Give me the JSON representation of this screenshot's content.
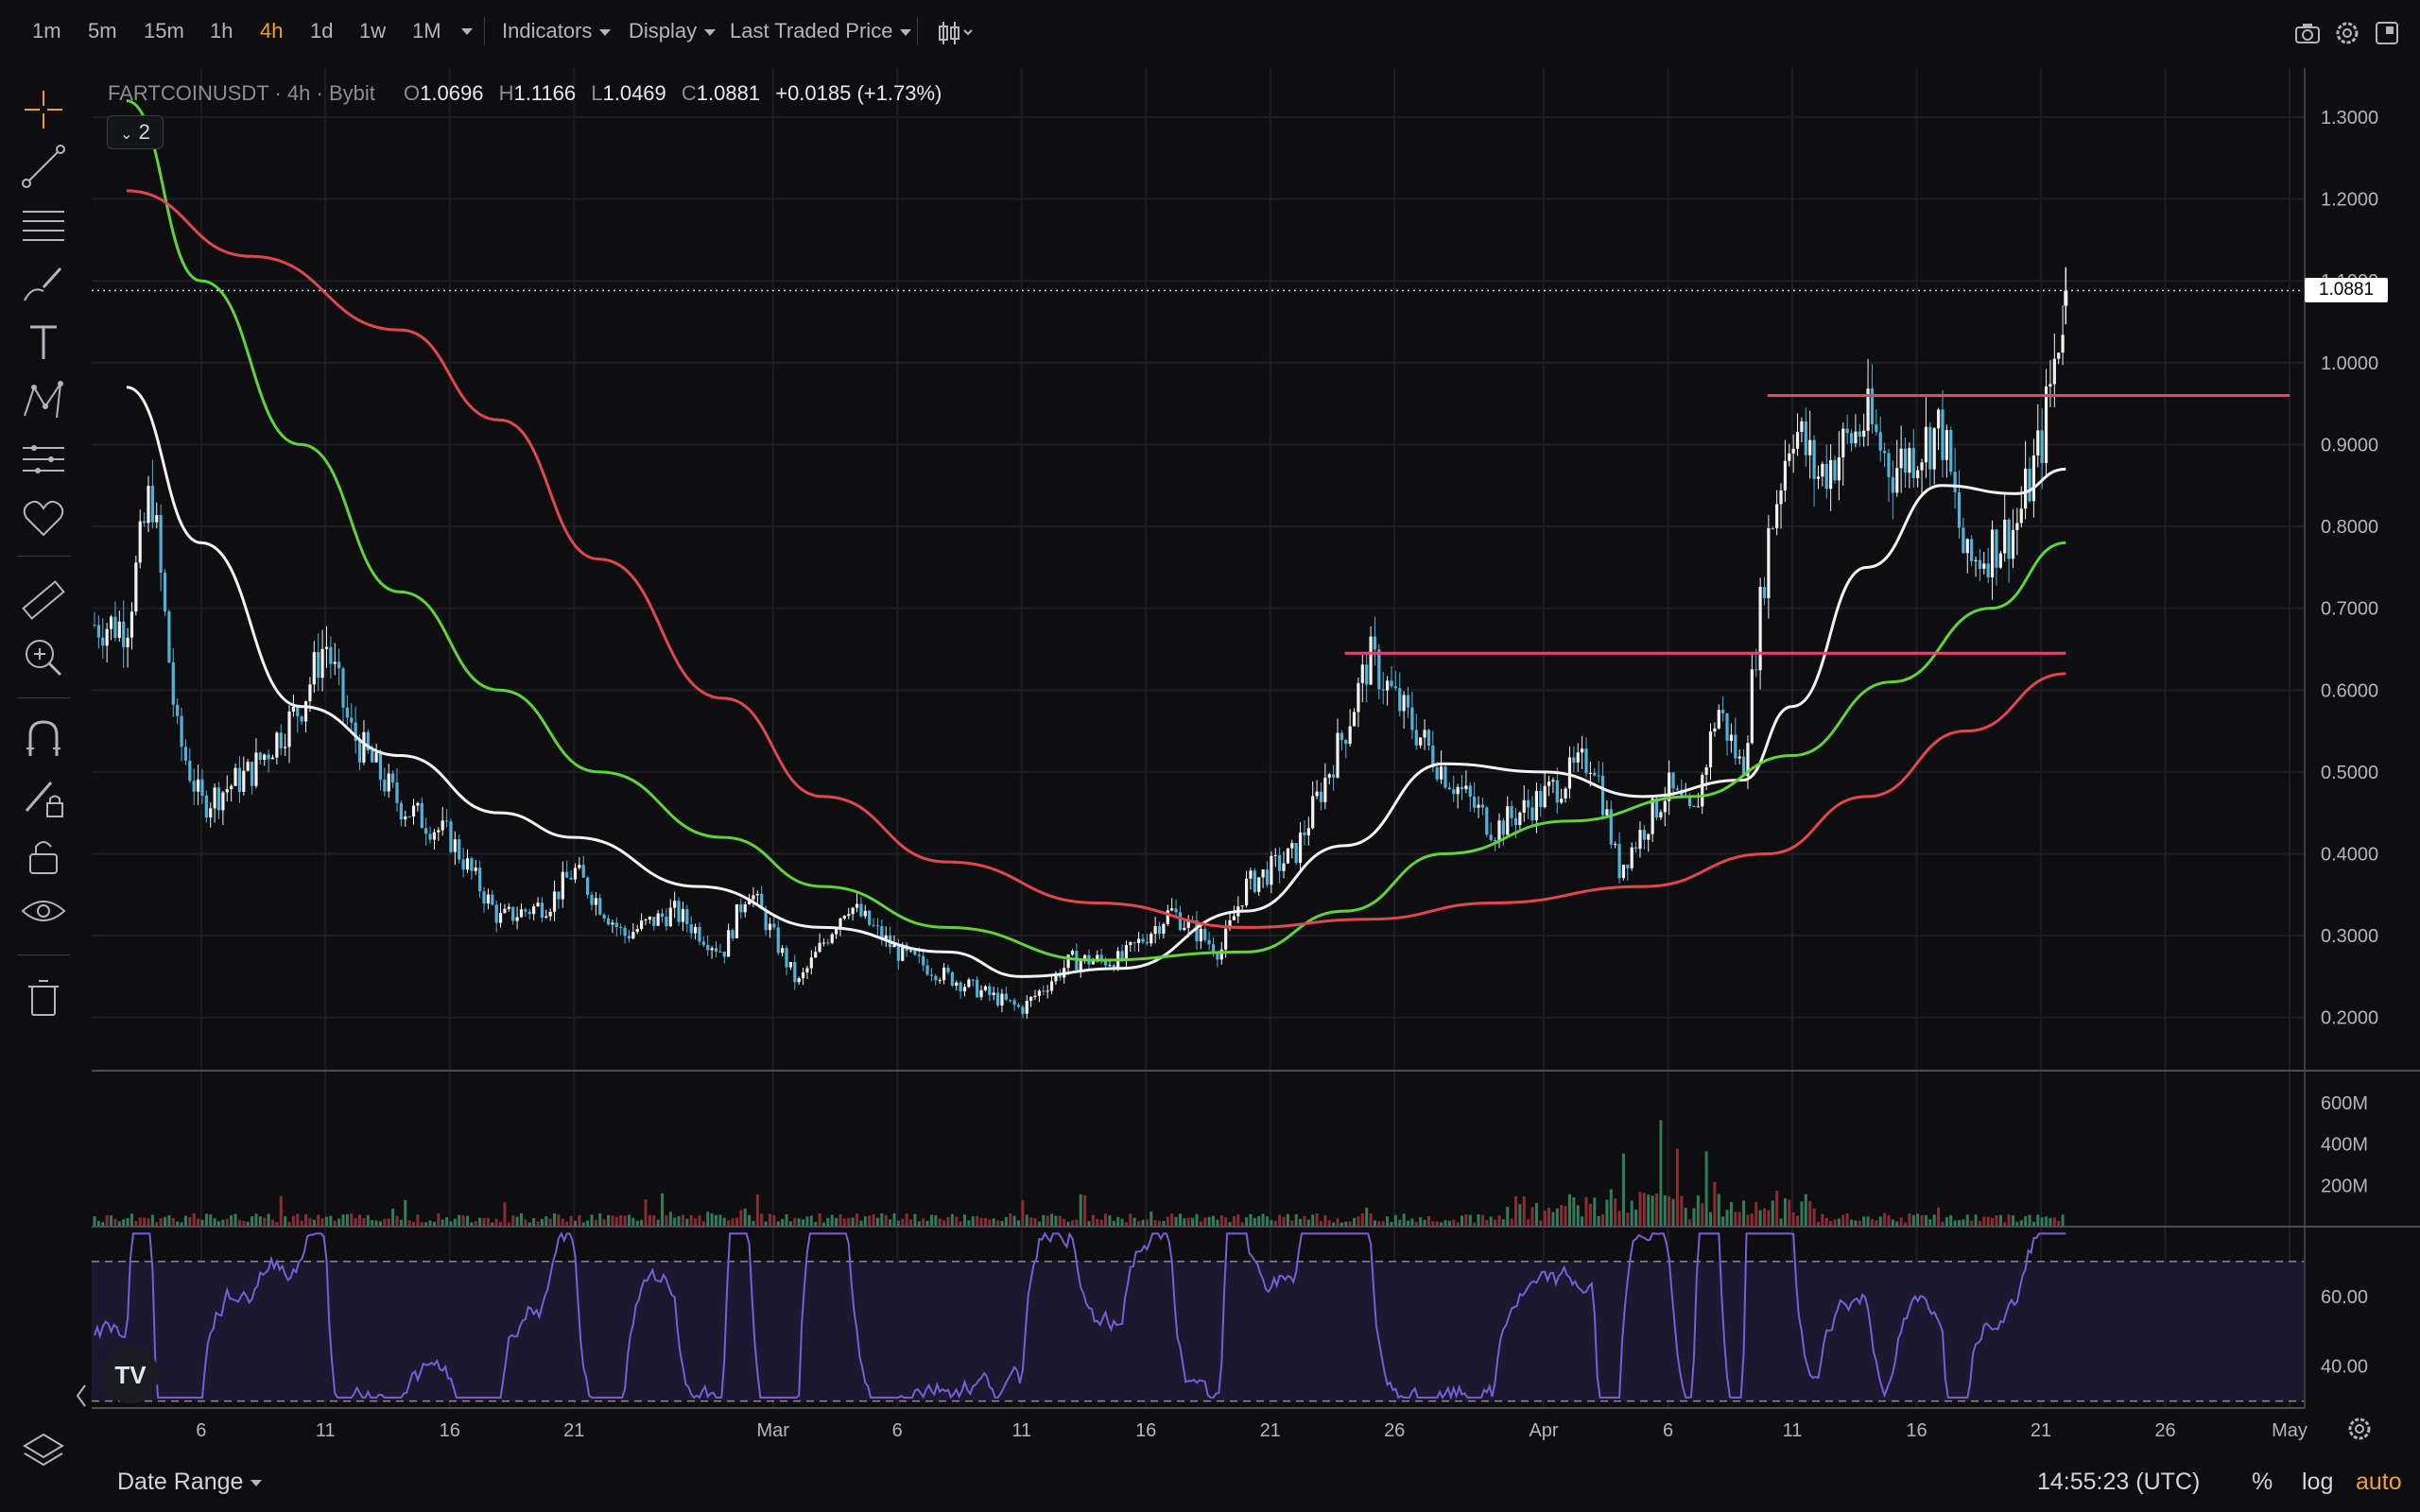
{
  "toolbar": {
    "timeframes": [
      "1m",
      "5m",
      "15m",
      "1h",
      "4h",
      "1d",
      "1w",
      "1M"
    ],
    "active_timeframe": "4h",
    "indicators_label": "Indicators",
    "display_label": "Display",
    "price_source_label": "Last Traded Price"
  },
  "legend": {
    "symbol": "FARTCOINUSDT",
    "interval": "4h",
    "exchange": "Bybit",
    "open_key": "O",
    "open": "1.0696",
    "high_key": "H",
    "high": "1.1166",
    "low_key": "L",
    "low": "1.0469",
    "close_key": "C",
    "close": "1.0881",
    "change": "+0.0185 (+1.73%)",
    "collapse_count": "2"
  },
  "current_price_label": "1.0881",
  "bottom": {
    "date_range_label": "Date Range",
    "clock": "14:55:23 (UTC)",
    "percent_label": "%",
    "log_label": "log",
    "auto_label": "auto",
    "logo_text": "TV"
  },
  "colors": {
    "background": "#0e0e10",
    "candle": "#4fb3d9",
    "ma_white": "#f2f2f2",
    "ma_green": "#5fd33a",
    "ma_red": "#e0474c",
    "hline": "#e0476e",
    "rsi_line": "#7a5cd6",
    "rsi_band": "#1b1830",
    "accent": "#f0a030"
  },
  "chart_data": [
    {
      "type": "candlestick",
      "title": "",
      "x_tick_labels": [
        "6",
        "11",
        "16",
        "21",
        "Mar",
        "6",
        "11",
        "16",
        "21",
        "26",
        "Apr",
        "6",
        "11",
        "16",
        "21",
        "26",
        "May"
      ],
      "y_tick_labels": [
        "0.2000",
        "0.3000",
        "0.4000",
        "0.5000",
        "0.6000",
        "0.7000",
        "0.8000",
        "0.9000",
        "1.0000",
        "1.1000",
        "1.2000",
        "1.3000"
      ],
      "ylim": [
        0.135,
        1.36
      ],
      "grid": true,
      "price_path": [
        [
          "Feb 3",
          0.68
        ],
        [
          "Feb 4",
          0.85
        ],
        [
          "Feb 5",
          0.55
        ],
        [
          "Feb 6",
          0.46
        ],
        [
          "Feb 8",
          0.5
        ],
        [
          "Feb 10",
          0.58
        ],
        [
          "Feb 11",
          0.66
        ],
        [
          "Feb 12",
          0.55
        ],
        [
          "Feb 14",
          0.46
        ],
        [
          "Feb 16",
          0.42
        ],
        [
          "Feb 18",
          0.32
        ],
        [
          "Feb 20",
          0.34
        ],
        [
          "Feb 21",
          0.38
        ],
        [
          "Feb 23",
          0.3
        ],
        [
          "Feb 25",
          0.33
        ],
        [
          "Feb 27",
          0.28
        ],
        [
          "Feb 28",
          0.36
        ],
        [
          "Mar 2",
          0.24
        ],
        [
          "Mar 4",
          0.34
        ],
        [
          "Mar 6",
          0.28
        ],
        [
          "Mar 8",
          0.25
        ],
        [
          "Mar 11",
          0.21
        ],
        [
          "Mar 13",
          0.27
        ],
        [
          "Mar 15",
          0.27
        ],
        [
          "Mar 17",
          0.33
        ],
        [
          "Mar 19",
          0.28
        ],
        [
          "Mar 20",
          0.36
        ],
        [
          "Mar 22",
          0.4
        ],
        [
          "Mar 24",
          0.55
        ],
        [
          "Mar 25",
          0.64
        ],
        [
          "Mar 26",
          0.59
        ],
        [
          "Mar 28",
          0.5
        ],
        [
          "Mar 30",
          0.43
        ],
        [
          "Apr 1",
          0.47
        ],
        [
          "Apr 3",
          0.52
        ],
        [
          "Apr 4",
          0.38
        ],
        [
          "Apr 6",
          0.48
        ],
        [
          "Apr 7",
          0.44
        ],
        [
          "Apr 8",
          0.58
        ],
        [
          "Apr 9",
          0.5
        ],
        [
          "Apr 10",
          0.78
        ],
        [
          "Apr 11",
          0.93
        ],
        [
          "Apr 12",
          0.86
        ],
        [
          "Apr 14",
          0.93
        ],
        [
          "Apr 15",
          0.87
        ],
        [
          "Apr 17",
          0.92
        ],
        [
          "Apr 18",
          0.75
        ],
        [
          "Apr 20",
          0.8
        ],
        [
          "Apr 21",
          0.9
        ],
        [
          "Apr 22",
          1.0881
        ]
      ],
      "series": [
        {
          "name": "",
          "color": "#f2f2f2",
          "points": [
            [
              "Feb 3",
              0.97
            ],
            [
              "Feb 6",
              0.78
            ],
            [
              "Feb 10",
              0.58
            ],
            [
              "Feb 14",
              0.52
            ],
            [
              "Feb 18",
              0.45
            ],
            [
              "Feb 21",
              0.42
            ],
            [
              "Feb 26",
              0.36
            ],
            [
              "Mar 3",
              0.31
            ],
            [
              "Mar 8",
              0.28
            ],
            [
              "Mar 11",
              0.25
            ],
            [
              "Mar 15",
              0.26
            ],
            [
              "Mar 20",
              0.33
            ],
            [
              "Mar 24",
              0.41
            ],
            [
              "Mar 28",
              0.51
            ],
            [
              "Apr 1",
              0.5
            ],
            [
              "Apr 5",
              0.47
            ],
            [
              "Apr 9",
              0.49
            ],
            [
              "Apr 11",
              0.58
            ],
            [
              "Apr 14",
              0.75
            ],
            [
              "Apr 17",
              0.85
            ],
            [
              "Apr 20",
              0.84
            ],
            [
              "Apr 22",
              0.87
            ]
          ]
        },
        {
          "name": "",
          "color": "#5fd33a",
          "points": [
            [
              "Feb 3",
              1.32
            ],
            [
              "Feb 6",
              1.1
            ],
            [
              "Feb 10",
              0.9
            ],
            [
              "Feb 14",
              0.72
            ],
            [
              "Feb 18",
              0.6
            ],
            [
              "Feb 22",
              0.5
            ],
            [
              "Feb 27",
              0.42
            ],
            [
              "Mar 3",
              0.36
            ],
            [
              "Mar 8",
              0.31
            ],
            [
              "Mar 14",
              0.27
            ],
            [
              "Mar 20",
              0.28
            ],
            [
              "Mar 24",
              0.33
            ],
            [
              "Mar 28",
              0.4
            ],
            [
              "Apr 2",
              0.44
            ],
            [
              "Apr 7",
              0.47
            ],
            [
              "Apr 11",
              0.52
            ],
            [
              "Apr 15",
              0.61
            ],
            [
              "Apr 19",
              0.7
            ],
            [
              "Apr 22",
              0.78
            ]
          ]
        },
        {
          "name": "",
          "color": "#e0474c",
          "points": [
            [
              "Feb 3",
              1.21
            ],
            [
              "Feb 8",
              1.13
            ],
            [
              "Feb 14",
              1.04
            ],
            [
              "Feb 18",
              0.93
            ],
            [
              "Feb 22",
              0.76
            ],
            [
              "Feb 27",
              0.59
            ],
            [
              "Mar 3",
              0.47
            ],
            [
              "Mar 8",
              0.39
            ],
            [
              "Mar 14",
              0.34
            ],
            [
              "Mar 20",
              0.31
            ],
            [
              "Mar 25",
              0.32
            ],
            [
              "Mar 30",
              0.34
            ],
            [
              "Apr 5",
              0.36
            ],
            [
              "Apr 10",
              0.4
            ],
            [
              "Apr 14",
              0.47
            ],
            [
              "Apr 18",
              0.55
            ],
            [
              "Apr 22",
              0.62
            ]
          ]
        }
      ],
      "horizontal_lines": [
        {
          "value": 0.645,
          "from": "Mar 24",
          "to": "Apr 22",
          "color": "#e0476e"
        },
        {
          "value": 0.96,
          "from": "Apr 10",
          "to": "May 1",
          "color": "#e0476e"
        }
      ],
      "last_price": 1.0881
    },
    {
      "type": "bar",
      "title": "",
      "y_tick_labels": [
        "200M",
        "400M",
        "600M"
      ],
      "ylim": [
        0,
        700
      ],
      "y_unit": "M"
    },
    {
      "type": "line",
      "title": "",
      "y_tick_labels": [
        "40.00",
        "60.00"
      ],
      "ylim": [
        28,
        80
      ],
      "band": [
        30,
        70
      ]
    }
  ]
}
